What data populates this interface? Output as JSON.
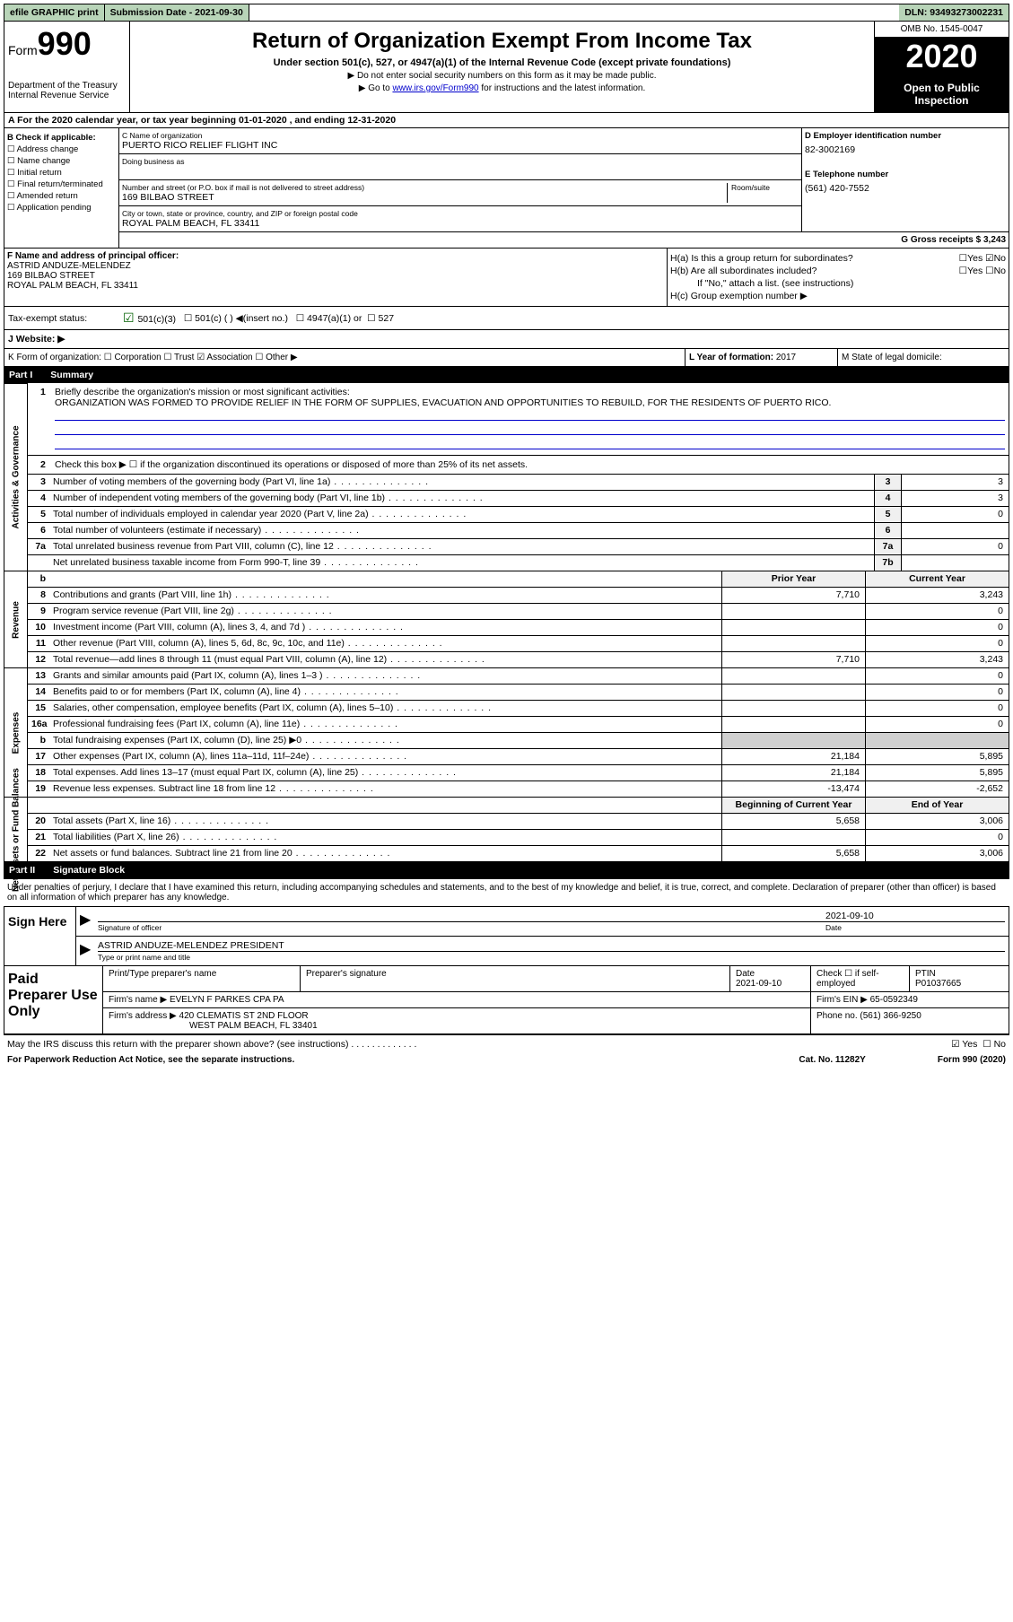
{
  "topbar": {
    "efile": "efile GRAPHIC print",
    "submission_label": "Submission Date - 2021-09-30",
    "dln": "DLN: 93493273002231"
  },
  "header": {
    "form_label": "Form",
    "form_num": "990",
    "dept": "Department of the Treasury Internal Revenue Service",
    "title": "Return of Organization Exempt From Income Tax",
    "subtitle": "Under section 501(c), 527, or 4947(a)(1) of the Internal Revenue Code (except private foundations)",
    "note1": "▶ Do not enter social security numbers on this form as it may be made public.",
    "note2_pre": "▶ Go to ",
    "note2_link": "www.irs.gov/Form990",
    "note2_post": " for instructions and the latest information.",
    "omb": "OMB No. 1545-0047",
    "year": "2020",
    "open_public": "Open to Public Inspection"
  },
  "section_a": "A For the 2020 calendar year, or tax year beginning 01-01-2020    , and ending 12-31-2020",
  "col_b": {
    "title": "B Check if applicable:",
    "opts": [
      "Address change",
      "Name change",
      "Initial return",
      "Final return/terminated",
      "Amended return",
      "Application pending"
    ]
  },
  "col_c": {
    "name_lbl": "C Name of organization",
    "name": "PUERTO RICO RELIEF FLIGHT INC",
    "dba_lbl": "Doing business as",
    "addr_lbl": "Number and street (or P.O. box if mail is not delivered to street address)",
    "addr": "169 BILBAO STREET",
    "room_lbl": "Room/suite",
    "city_lbl": "City or town, state or province, country, and ZIP or foreign postal code",
    "city": "ROYAL PALM BEACH, FL  33411"
  },
  "col_d": {
    "ein_lbl": "D Employer identification number",
    "ein": "82-3002169",
    "phone_lbl": "E Telephone number",
    "phone": "(561) 420-7552",
    "gross_lbl": "G Gross receipts $ 3,243"
  },
  "col_f": {
    "lbl": "F Name and address of principal officer:",
    "name": "ASTRID ANDUZE-MELENDEZ",
    "addr1": "169 BILBAO STREET",
    "addr2": "ROYAL PALM BEACH, FL  33411"
  },
  "col_h": {
    "ha": "H(a)  Is this a group return for subordinates?",
    "hb": "H(b)  Are all subordinates included?",
    "hb_note": "If \"No,\" attach a list. (see instructions)",
    "hc": "H(c)  Group exemption number ▶",
    "yes": "Yes",
    "no": "No"
  },
  "tax_status": {
    "lbl": "Tax-exempt status:",
    "o1": "501(c)(3)",
    "o2": "501(c) (  ) ◀(insert no.)",
    "o3": "4947(a)(1) or",
    "o4": "527"
  },
  "website": "J   Website: ▶",
  "klm": {
    "k": "K Form of organization:  ☐ Corporation  ☐ Trust  ☑ Association  ☐ Other ▶",
    "l_lbl": "L Year of formation: ",
    "l_val": "2017",
    "m": "M State of legal domicile:"
  },
  "part1": {
    "label": "Part I",
    "title": "Summary",
    "q1_lbl": "Briefly describe the organization's mission or most significant activities:",
    "mission": "ORGANIZATION WAS FORMED TO PROVIDE RELIEF IN THE FORM OF SUPPLIES, EVACUATION AND OPPORTUNITIES TO REBUILD, FOR THE RESIDENTS OF PUERTO RICO.",
    "q2": "Check this box ▶ ☐  if the organization discontinued its operations or disposed of more than 25% of its net assets.",
    "sides": {
      "gov": "Activities & Governance",
      "rev": "Revenue",
      "exp": "Expenses",
      "net": "Net Assets or Fund Balances"
    },
    "rows_gov": [
      {
        "n": "3",
        "d": "Number of voting members of the governing body (Part VI, line 1a)",
        "box": "3",
        "v": "3"
      },
      {
        "n": "4",
        "d": "Number of independent voting members of the governing body (Part VI, line 1b)",
        "box": "4",
        "v": "3"
      },
      {
        "n": "5",
        "d": "Total number of individuals employed in calendar year 2020 (Part V, line 2a)",
        "box": "5",
        "v": "0"
      },
      {
        "n": "6",
        "d": "Total number of volunteers (estimate if necessary)",
        "box": "6",
        "v": ""
      },
      {
        "n": "7a",
        "d": "Total unrelated business revenue from Part VIII, column (C), line 12",
        "box": "7a",
        "v": "0"
      },
      {
        "n": "",
        "d": "Net unrelated business taxable income from Form 990-T, line 39",
        "box": "7b",
        "v": ""
      }
    ],
    "hdr_prior": "Prior Year",
    "hdr_curr": "Current Year",
    "rows_rev": [
      {
        "n": "8",
        "d": "Contributions and grants (Part VIII, line 1h)",
        "p": "7,710",
        "c": "3,243"
      },
      {
        "n": "9",
        "d": "Program service revenue (Part VIII, line 2g)",
        "p": "",
        "c": "0"
      },
      {
        "n": "10",
        "d": "Investment income (Part VIII, column (A), lines 3, 4, and 7d )",
        "p": "",
        "c": "0"
      },
      {
        "n": "11",
        "d": "Other revenue (Part VIII, column (A), lines 5, 6d, 8c, 9c, 10c, and 11e)",
        "p": "",
        "c": "0"
      },
      {
        "n": "12",
        "d": "Total revenue—add lines 8 through 11 (must equal Part VIII, column (A), line 12)",
        "p": "7,710",
        "c": "3,243"
      }
    ],
    "rows_exp": [
      {
        "n": "13",
        "d": "Grants and similar amounts paid (Part IX, column (A), lines 1–3 )",
        "p": "",
        "c": "0"
      },
      {
        "n": "14",
        "d": "Benefits paid to or for members (Part IX, column (A), line 4)",
        "p": "",
        "c": "0"
      },
      {
        "n": "15",
        "d": "Salaries, other compensation, employee benefits (Part IX, column (A), lines 5–10)",
        "p": "",
        "c": "0"
      },
      {
        "n": "16a",
        "d": "Professional fundraising fees (Part IX, column (A), line 11e)",
        "p": "",
        "c": "0"
      },
      {
        "n": "b",
        "d": "Total fundraising expenses (Part IX, column (D), line 25) ▶0",
        "p": "shaded",
        "c": "shaded"
      },
      {
        "n": "17",
        "d": "Other expenses (Part IX, column (A), lines 11a–11d, 11f–24e)",
        "p": "21,184",
        "c": "5,895"
      },
      {
        "n": "18",
        "d": "Total expenses. Add lines 13–17 (must equal Part IX, column (A), line 25)",
        "p": "21,184",
        "c": "5,895"
      },
      {
        "n": "19",
        "d": "Revenue less expenses. Subtract line 18 from line 12",
        "p": "-13,474",
        "c": "-2,652"
      }
    ],
    "hdr_beg": "Beginning of Current Year",
    "hdr_end": "End of Year",
    "rows_net": [
      {
        "n": "20",
        "d": "Total assets (Part X, line 16)",
        "p": "5,658",
        "c": "3,006"
      },
      {
        "n": "21",
        "d": "Total liabilities (Part X, line 26)",
        "p": "",
        "c": "0"
      },
      {
        "n": "22",
        "d": "Net assets or fund balances. Subtract line 21 from line 20",
        "p": "5,658",
        "c": "3,006"
      }
    ]
  },
  "part2": {
    "label": "Part II",
    "title": "Signature Block",
    "intro": "Under penalties of perjury, I declare that I have examined this return, including accompanying schedules and statements, and to the best of my knowledge and belief, it is true, correct, and complete. Declaration of preparer (other than officer) is based on all information of which preparer has any knowledge.",
    "sign_here": "Sign Here",
    "sig_lbl": "Signature of officer",
    "date_lbl": "Date",
    "date_val": "2021-09-10",
    "officer": "ASTRID ANDUZE-MELENDEZ  PRESIDENT",
    "officer_lbl": "Type or print name and title",
    "paid": "Paid Preparer Use Only",
    "prep_name_lbl": "Print/Type preparer's name",
    "prep_sig_lbl": "Preparer's signature",
    "prep_date_lbl": "Date",
    "prep_date": "2021-09-10",
    "self_emp": "Check ☐  if self-employed",
    "ptin_lbl": "PTIN",
    "ptin": "P01037665",
    "firm_name_lbl": "Firm's name    ▶",
    "firm_name": "EVELYN F PARKES CPA PA",
    "firm_ein_lbl": "Firm's EIN ▶",
    "firm_ein": "65-0592349",
    "firm_addr_lbl": "Firm's address ▶",
    "firm_addr1": "420 CLEMATIS ST 2ND FLOOR",
    "firm_addr2": "WEST PALM BEACH, FL  33401",
    "firm_phone_lbl": "Phone no.",
    "firm_phone": "(561) 366-9250"
  },
  "footer": {
    "discuss": "May the IRS discuss this return with the preparer shown above? (see instructions)",
    "yes": "Yes",
    "no": "No",
    "paperwork": "For Paperwork Reduction Act Notice, see the separate instructions.",
    "cat": "Cat. No. 11282Y",
    "form": "Form 990 (2020)"
  }
}
